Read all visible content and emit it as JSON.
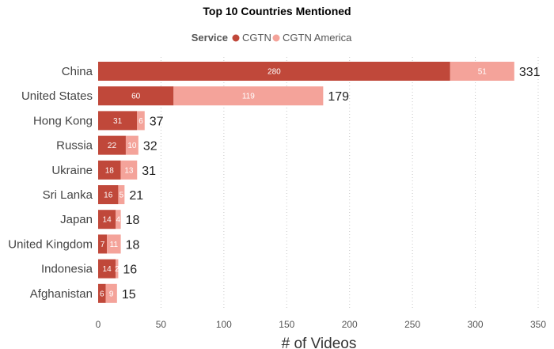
{
  "chart_data": {
    "type": "bar",
    "orientation": "horizontal",
    "stacked": true,
    "title": "Top 10 Countries Mentioned",
    "legend": {
      "title": "Service",
      "position": "top-center"
    },
    "xlabel": "# of Videos",
    "ylabel": "",
    "xlim": [
      0,
      350
    ],
    "xticks": [
      0,
      50,
      100,
      150,
      200,
      250,
      300,
      350
    ],
    "grid": "vertical-dotted",
    "categories": [
      "China",
      "United States",
      "Hong Kong",
      "Russia",
      "Ukraine",
      "Sri Lanka",
      "Japan",
      "United Kingdom",
      "Indonesia",
      "Afghanistan"
    ],
    "series": [
      {
        "name": "CGTN",
        "color": "#c0483a",
        "values": [
          280,
          60,
          31,
          22,
          18,
          16,
          14,
          7,
          14,
          6
        ]
      },
      {
        "name": "CGTN America",
        "color": "#f4a39a",
        "values": [
          51,
          119,
          6,
          10,
          13,
          5,
          4,
          11,
          2,
          9
        ]
      }
    ],
    "totals": [
      331,
      179,
      37,
      32,
      31,
      21,
      18,
      18,
      16,
      15
    ]
  }
}
